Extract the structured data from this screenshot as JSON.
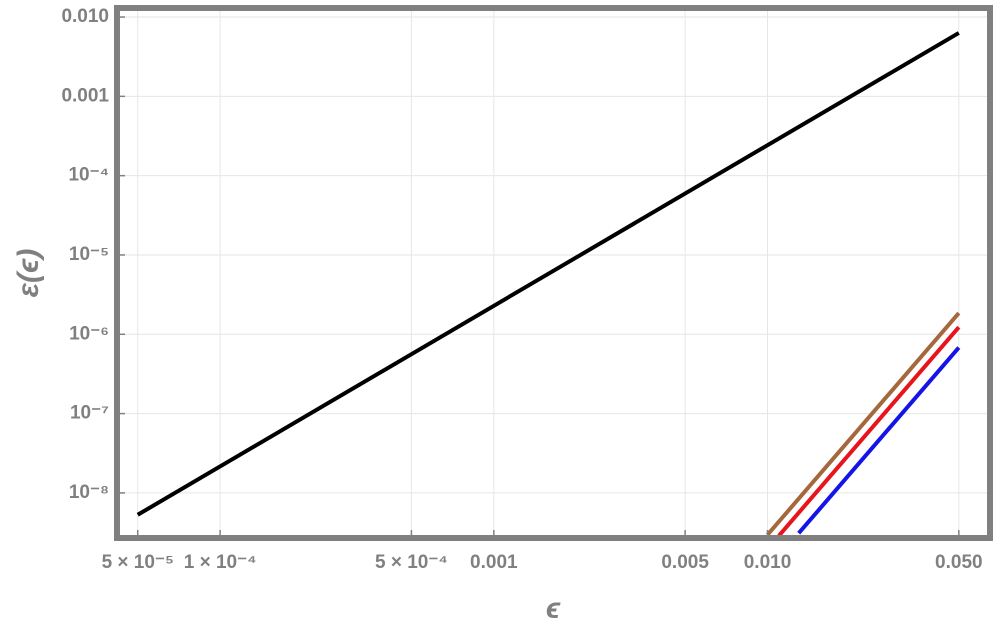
{
  "chart_data": {
    "type": "line",
    "x_label": "ϵ",
    "y_label": "ε(ϵ)",
    "log_x": true,
    "log_y": true,
    "grid": true,
    "xlim": [
      4.2e-05,
      0.065
    ],
    "ylim": [
      2.7e-09,
      0.013
    ],
    "xticks": [
      {
        "value": 5e-05,
        "label": "5 × 10⁻⁵"
      },
      {
        "value": 0.0001,
        "label": "1 × 10⁻⁴"
      },
      {
        "value": 0.0005,
        "label": "5 × 10⁻⁴"
      },
      0.001,
      0.005,
      {
        "value": 0.01,
        "label": "0.010"
      },
      {
        "value": 0.05,
        "label": "0.050"
      }
    ],
    "yticks": [
      {
        "value": 1e-08,
        "label": "10⁻⁸"
      },
      {
        "value": 1e-07,
        "label": "10⁻⁷"
      },
      {
        "value": 1e-06,
        "label": "10⁻⁶"
      },
      {
        "value": 1e-05,
        "label": "10⁻⁵"
      },
      {
        "value": 0.0001,
        "label": "10⁻⁴"
      },
      0.001,
      {
        "value": 0.01,
        "label": "0.010"
      }
    ],
    "series": [
      {
        "color": "#000000",
        "x": [
          5e-05,
          0.05
        ],
        "values": [
          5.3e-09,
          0.0063
        ]
      },
      {
        "color": "#a5683c",
        "x": [
          0.01,
          0.05
        ],
        "values": [
          2.96e-09,
          1.85e-06
        ]
      },
      {
        "color": "#e8141c",
        "x": [
          0.011,
          0.05
        ],
        "values": [
          2.88e-09,
          1.23e-06
        ]
      },
      {
        "color": "#1414e8",
        "x": [
          0.013,
          0.05
        ],
        "values": [
          3.1e-09,
          6.8e-07
        ]
      }
    ]
  }
}
